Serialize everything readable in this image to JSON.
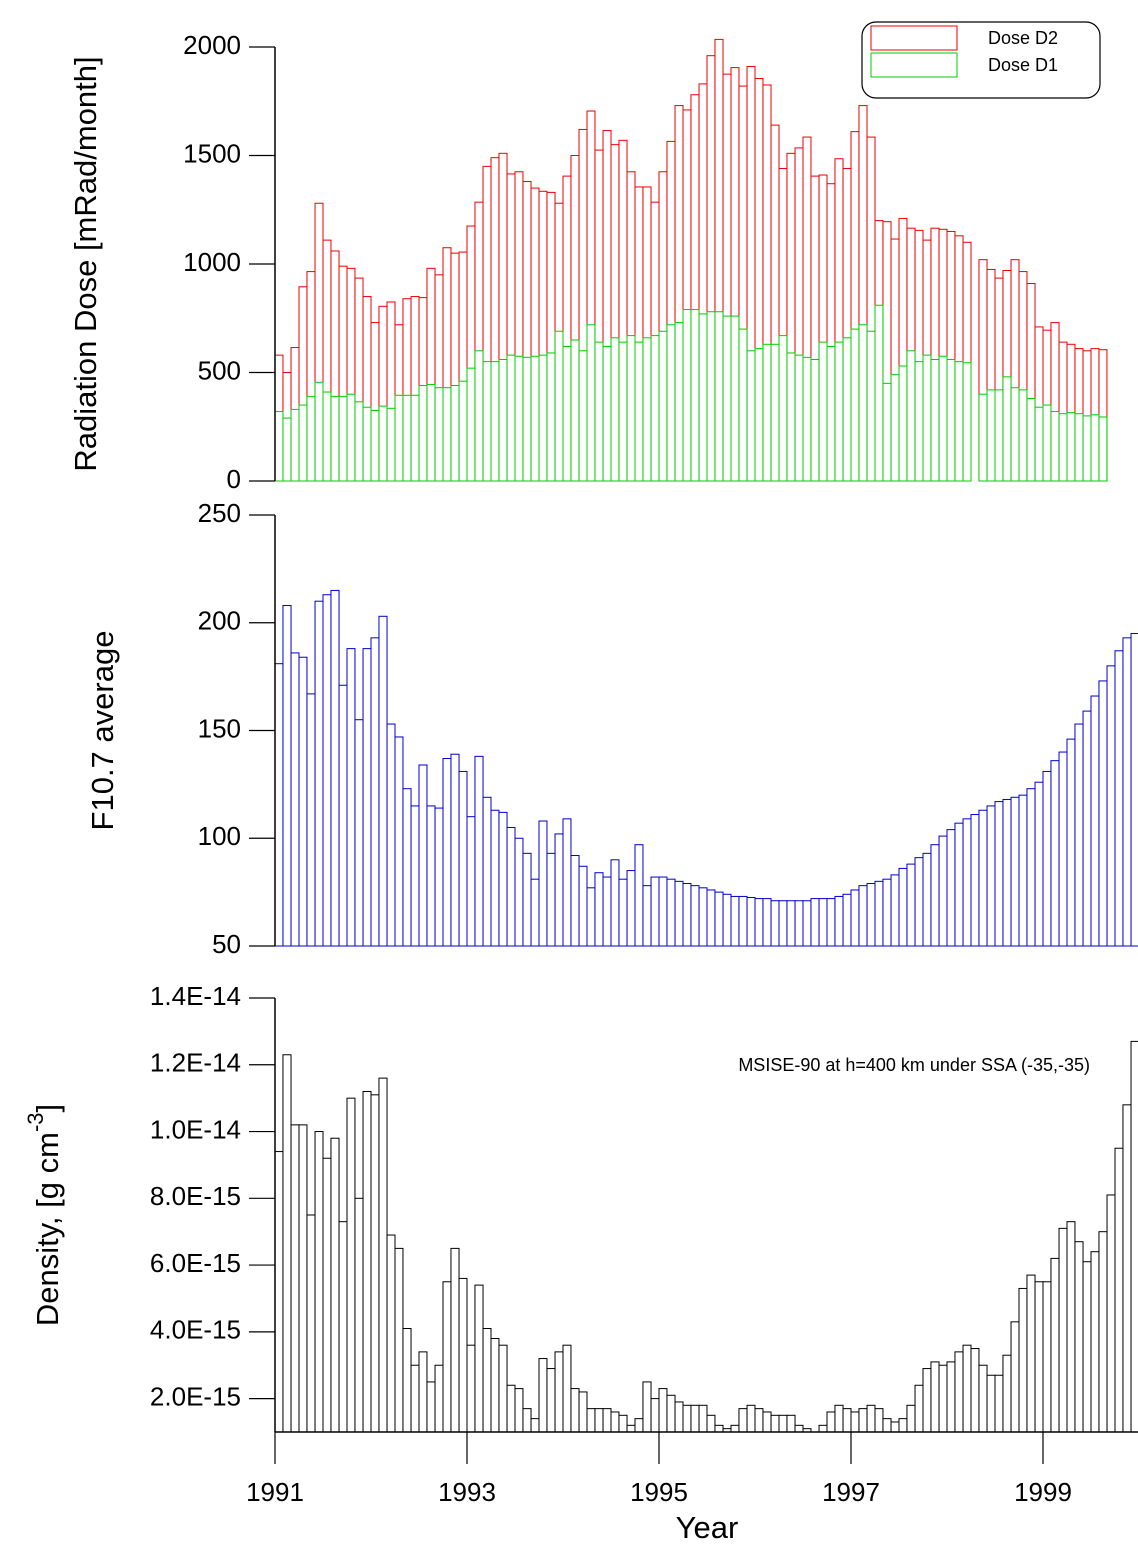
{
  "chart_data": [
    {
      "type": "bar",
      "ylabel": "Radiation Dose [mRad/month]",
      "legend": "top-right",
      "ylim": [
        0,
        2000
      ],
      "yticks": [
        0,
        500,
        1000,
        1500,
        2000
      ],
      "x": [
        1991,
        1991.083,
        1991.167,
        1991.25,
        1991.333,
        1991.417,
        1991.5,
        1991.583,
        1991.667,
        1991.75,
        1991.833,
        1991.917,
        1992,
        1992.083,
        1992.167,
        1992.25,
        1992.333,
        1992.417,
        1992.5,
        1992.583,
        1992.667,
        1992.75,
        1992.833,
        1992.917,
        1993,
        1993.083,
        1993.167,
        1993.25,
        1993.333,
        1993.417,
        1993.5,
        1993.583,
        1993.667,
        1993.75,
        1993.833,
        1993.917,
        1994,
        1994.083,
        1994.167,
        1994.25,
        1994.333,
        1994.417,
        1994.5,
        1994.583,
        1994.667,
        1994.75,
        1994.833,
        1994.917,
        1995,
        1995.083,
        1995.167,
        1995.25,
        1995.333,
        1995.417,
        1995.5,
        1995.583,
        1995.667,
        1995.75,
        1995.833,
        1995.917,
        1996,
        1996.083,
        1996.167,
        1996.25,
        1996.333,
        1996.417,
        1996.5,
        1996.583,
        1996.667,
        1996.75,
        1996.833,
        1996.917,
        1997,
        1997.083,
        1997.167,
        1997.25,
        1997.333,
        1997.417,
        1997.5,
        1997.583,
        1997.667,
        1997.75,
        1997.833,
        1997.917,
        1998,
        1998.083,
        1998.167,
        1998.25,
        1998.333,
        1998.417,
        1998.5,
        1998.583,
        1998.667,
        1998.75,
        1998.833,
        1998.917,
        1999,
        1999.083,
        1999.167,
        1999.25,
        1999.333,
        1999.417,
        1999.5,
        1999.583
      ],
      "series": [
        {
          "name": "Dose D2",
          "color": "#ee0000",
          "values": [
            580,
            500,
            615,
            895,
            965,
            1280,
            1110,
            1060,
            990,
            980,
            935,
            850,
            730,
            805,
            825,
            720,
            840,
            850,
            845,
            980,
            950,
            1075,
            1050,
            1055,
            1175,
            1285,
            1450,
            1490,
            1510,
            1415,
            1425,
            1380,
            1350,
            1335,
            1330,
            1280,
            1405,
            1500,
            1620,
            1705,
            1525,
            1615,
            1550,
            1570,
            1425,
            1355,
            1355,
            1285,
            1425,
            1565,
            1730,
            1710,
            1780,
            1830,
            1960,
            2035,
            1875,
            1905,
            1820,
            1910,
            1855,
            1825,
            1640,
            1440,
            1510,
            1535,
            1585,
            1405,
            1410,
            1370,
            1485,
            1440,
            1610,
            1730,
            1585,
            1200,
            1195,
            1115,
            1210,
            1165,
            1155,
            1110,
            1165,
            1160,
            1150,
            1130,
            1100,
            0,
            1020,
            975,
            935,
            970,
            1020,
            965,
            910,
            710,
            695,
            730,
            640,
            630,
            610,
            600,
            610,
            605
          ]
        },
        {
          "name": "Dose D1",
          "color": "#00cc00",
          "values": [
            320,
            290,
            330,
            350,
            390,
            455,
            410,
            390,
            390,
            400,
            365,
            340,
            325,
            345,
            335,
            395,
            395,
            395,
            440,
            445,
            430,
            430,
            440,
            460,
            520,
            600,
            550,
            550,
            560,
            580,
            575,
            570,
            575,
            580,
            590,
            690,
            620,
            650,
            600,
            720,
            640,
            620,
            660,
            640,
            670,
            640,
            660,
            670,
            690,
            720,
            730,
            790,
            790,
            770,
            780,
            780,
            760,
            760,
            700,
            600,
            610,
            630,
            630,
            670,
            590,
            580,
            570,
            560,
            640,
            620,
            640,
            660,
            700,
            720,
            690,
            810,
            450,
            490,
            530,
            600,
            550,
            580,
            560,
            575,
            560,
            550,
            545,
            0,
            400,
            420,
            420,
            480,
            430,
            420,
            380,
            340,
            350,
            320,
            310,
            315,
            310,
            300,
            305,
            295
          ]
        }
      ]
    },
    {
      "type": "bar",
      "ylabel": "F10.7 average",
      "ylim": [
        50,
        250
      ],
      "yticks": [
        50,
        100,
        150,
        200,
        250
      ],
      "x": [
        1991,
        1991.083,
        1991.167,
        1991.25,
        1991.333,
        1991.417,
        1991.5,
        1991.583,
        1991.667,
        1991.75,
        1991.833,
        1991.917,
        1992,
        1992.083,
        1992.167,
        1992.25,
        1992.333,
        1992.417,
        1992.5,
        1992.583,
        1992.667,
        1992.75,
        1992.833,
        1992.917,
        1993,
        1993.083,
        1993.167,
        1993.25,
        1993.333,
        1993.417,
        1993.5,
        1993.583,
        1993.667,
        1993.75,
        1993.833,
        1993.917,
        1994,
        1994.083,
        1994.167,
        1994.25,
        1994.333,
        1994.417,
        1994.5,
        1994.583,
        1994.667,
        1994.75,
        1994.833,
        1994.917,
        1995,
        1995.083,
        1995.167,
        1995.25,
        1995.333,
        1995.417,
        1995.5,
        1995.583,
        1995.667,
        1995.75,
        1995.833,
        1995.917,
        1996,
        1996.083,
        1996.167,
        1996.25,
        1996.333,
        1996.417,
        1996.5,
        1996.583,
        1996.667,
        1996.75,
        1996.833,
        1996.917,
        1997,
        1997.083,
        1997.167,
        1997.25,
        1997.333,
        1997.417,
        1997.5,
        1997.583,
        1997.667,
        1997.75,
        1997.833,
        1997.917,
        1998,
        1998.083,
        1998.167,
        1998.25,
        1998.333,
        1998.417,
        1998.5,
        1998.583,
        1998.667,
        1998.75,
        1998.833,
        1998.917,
        1999,
        1999.083,
        1999.167,
        1999.25,
        1999.333,
        1999.417,
        1999.5,
        1999.583,
        1999.667,
        1999.75,
        1999.833,
        1999.917
      ],
      "series": [
        {
          "color": "#0000cc",
          "values": [
            181,
            208,
            186,
            184,
            167,
            210,
            213,
            215,
            171,
            188,
            155,
            188,
            193,
            203,
            153,
            147,
            123,
            115,
            134,
            115,
            114,
            137,
            139,
            131,
            110,
            138,
            119,
            113,
            112,
            105,
            100,
            93,
            81,
            108,
            93,
            102,
            109,
            92,
            87,
            77,
            84,
            82,
            90,
            81,
            85,
            97,
            78,
            82,
            82,
            81,
            80,
            79,
            78,
            77,
            76,
            75,
            74,
            73,
            73,
            72.5,
            72,
            72,
            71,
            71,
            71,
            71,
            71,
            72,
            72,
            72,
            73,
            74,
            76,
            78,
            79,
            80,
            81,
            83,
            86,
            88,
            91,
            93,
            97,
            101,
            104,
            107,
            109,
            111,
            113,
            115,
            117,
            118,
            119,
            120,
            123,
            126,
            131,
            136,
            140,
            146,
            153,
            159,
            166,
            173,
            180,
            187,
            193,
            195
          ]
        }
      ]
    },
    {
      "type": "bar",
      "ylabel": [
        "Density, [g cm",
        "-3",
        "]"
      ],
      "xlabel": "Year",
      "annotation": "MSISE-90 at h=400 km under SSA (-35,-35)",
      "ylim": [
        1e-15,
        1.4e-14
      ],
      "yticks": [
        {
          "value": 2e-15,
          "label": "2.0E-15"
        },
        {
          "value": 4e-15,
          "label": "4.0E-15"
        },
        {
          "value": 6e-15,
          "label": "6.0E-15"
        },
        {
          "value": 8e-15,
          "label": "8.0E-15"
        },
        {
          "value": 1e-14,
          "label": "1.0E-14"
        },
        {
          "value": 1.2e-14,
          "label": "1.2E-14"
        },
        {
          "value": 1.4e-14,
          "label": "1.4E-14"
        }
      ],
      "xlim": [
        1991,
        2000
      ],
      "xticks": [
        1991,
        1993,
        1995,
        1997,
        1999
      ],
      "x": [
        1991,
        1991.083,
        1991.167,
        1991.25,
        1991.333,
        1991.417,
        1991.5,
        1991.583,
        1991.667,
        1991.75,
        1991.833,
        1991.917,
        1992,
        1992.083,
        1992.167,
        1992.25,
        1992.333,
        1992.417,
        1992.5,
        1992.583,
        1992.667,
        1992.75,
        1992.833,
        1992.917,
        1993,
        1993.083,
        1993.167,
        1993.25,
        1993.333,
        1993.417,
        1993.5,
        1993.583,
        1993.667,
        1993.75,
        1993.833,
        1993.917,
        1994,
        1994.083,
        1994.167,
        1994.25,
        1994.333,
        1994.417,
        1994.5,
        1994.583,
        1994.667,
        1994.75,
        1994.833,
        1994.917,
        1995,
        1995.083,
        1995.167,
        1995.25,
        1995.333,
        1995.417,
        1995.5,
        1995.583,
        1995.667,
        1995.75,
        1995.833,
        1995.917,
        1996,
        1996.083,
        1996.167,
        1996.25,
        1996.333,
        1996.417,
        1996.5,
        1996.583,
        1996.667,
        1996.75,
        1996.833,
        1996.917,
        1997,
        1997.083,
        1997.167,
        1997.25,
        1997.333,
        1997.417,
        1997.5,
        1997.583,
        1997.667,
        1997.75,
        1997.833,
        1997.917,
        1998,
        1998.083,
        1998.167,
        1998.25,
        1998.333,
        1998.417,
        1998.5,
        1998.583,
        1998.667,
        1998.75,
        1998.833,
        1998.917,
        1999,
        1999.083,
        1999.167,
        1999.25,
        1999.333,
        1999.417,
        1999.5,
        1999.583,
        1999.667,
        1999.75,
        1999.833,
        1999.917
      ],
      "series": [
        {
          "color": "#000000",
          "values": [
            9.4e-15,
            1.23e-14,
            1.02e-14,
            1.02e-14,
            7.5e-15,
            1e-14,
            9.2e-15,
            9.8e-15,
            7.3e-15,
            1.1e-14,
            8e-15,
            1.12e-14,
            1.11e-14,
            1.16e-14,
            6.9e-15,
            6.5e-15,
            4.1e-15,
            3e-15,
            3.4e-15,
            2.5e-15,
            3e-15,
            5.5e-15,
            6.5e-15,
            5.6e-15,
            3.6e-15,
            5.4e-15,
            4.1e-15,
            3.8e-15,
            3.6e-15,
            2.4e-15,
            2.3e-15,
            1.7e-15,
            1.4e-15,
            3.2e-15,
            2.9e-15,
            3.4e-15,
            3.6e-15,
            2.3e-15,
            2.2e-15,
            1.7e-15,
            1.7e-15,
            1.7e-15,
            1.6e-15,
            1.5e-15,
            1.2e-15,
            1.4e-15,
            2.5e-15,
            2e-15,
            2.3e-15,
            2.1e-15,
            1.9e-15,
            1.8e-15,
            1.8e-15,
            1.8e-15,
            1.5e-15,
            1.2e-15,
            1.1e-15,
            1.2e-15,
            1.7e-15,
            1.8e-15,
            1.7e-15,
            1.6e-15,
            1.5e-15,
            1.5e-15,
            1.5e-15,
            1.2e-15,
            1.1e-15,
            1e-15,
            1.2e-15,
            1.6e-15,
            1.8e-15,
            1.7e-15,
            1.6e-15,
            1.7e-15,
            1.8e-15,
            1.7e-15,
            1.4e-15,
            1.3e-15,
            1.4e-15,
            1.8e-15,
            2.4e-15,
            2.9e-15,
            3.1e-15,
            3e-15,
            3.1e-15,
            3.4e-15,
            3.6e-15,
            3.5e-15,
            3e-15,
            2.7e-15,
            2.7e-15,
            3.3e-15,
            4.3e-15,
            5.3e-15,
            5.7e-15,
            5.5e-15,
            5.5e-15,
            6.2e-15,
            7.1e-15,
            7.3e-15,
            6.7e-15,
            6.1e-15,
            6.4e-15,
            7e-15,
            8.1e-15,
            9.5e-15,
            1.08e-14,
            1.27e-14
          ]
        }
      ]
    }
  ]
}
